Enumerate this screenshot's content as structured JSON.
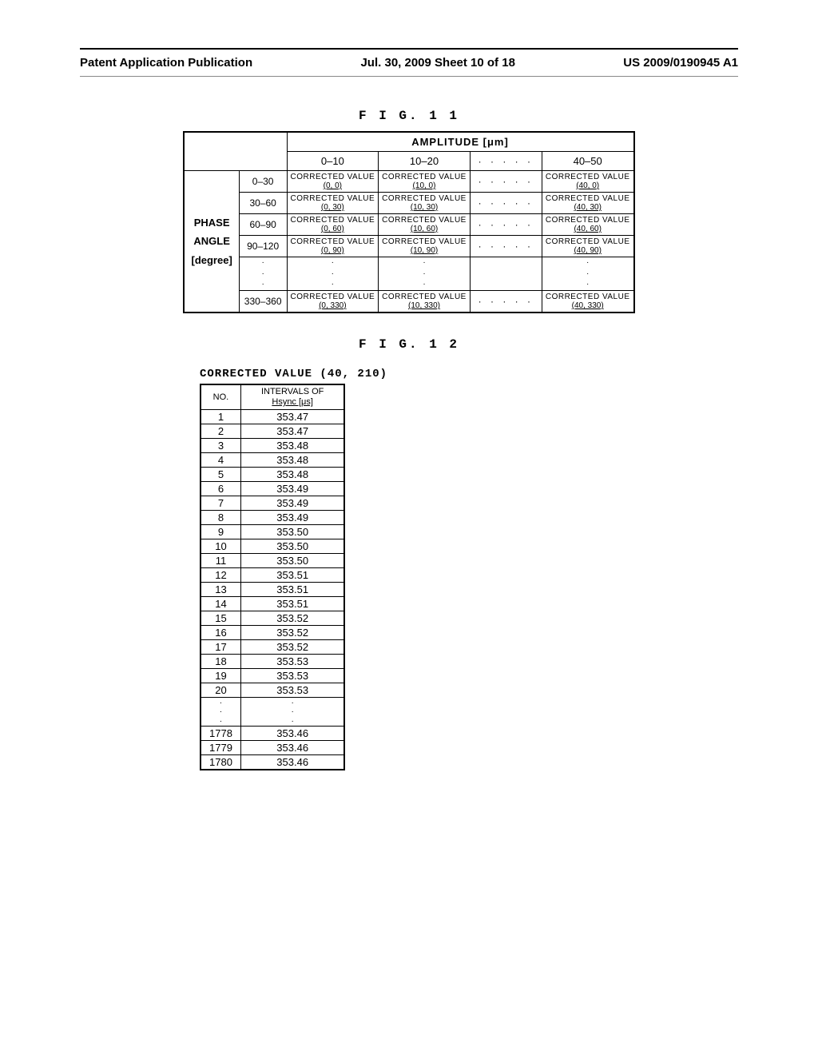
{
  "header": {
    "left": "Patent Application Publication",
    "center": "Jul. 30, 2009  Sheet 10 of 18",
    "right": "US 2009/0190945 A1"
  },
  "fig11": {
    "label": "F I G.  1 1",
    "amplitude_header": "AMPLITUDE   [μm]",
    "col_ranges": [
      "0–10",
      "10–20",
      "· · · · ·",
      "40–50"
    ],
    "phase_label_lines": [
      "PHASE",
      "ANGLE",
      "[degree]"
    ],
    "row_ranges": [
      "0–30",
      "30–60",
      "60–90",
      "90–120"
    ],
    "last_row_range": "330–360",
    "cv_text": "CORRECTED VALUE",
    "cells": {
      "r0": [
        "(0, 0)",
        "(10, 0)",
        "(40, 0)"
      ],
      "r1": [
        "(0, 30)",
        "(10, 30)",
        "(40, 30)"
      ],
      "r2": [
        "(0, 60)",
        "(10, 60)",
        "(40, 60)"
      ],
      "r3": [
        "(0, 90)",
        "(10, 90)",
        "(40, 90)"
      ],
      "rlast": [
        "(0, 330)",
        "(10, 330)",
        "(40, 330)"
      ]
    },
    "hdots": "· · · · ·"
  },
  "fig12": {
    "label": "F I G.  1 2",
    "title": "CORRECTED VALUE (40, 210)",
    "col1": "NO.",
    "col2_line1": "INTERVALS OF",
    "col2_line2": "Hsync  [μs]",
    "rows": [
      {
        "no": "1",
        "v": "353.47"
      },
      {
        "no": "2",
        "v": "353.47"
      },
      {
        "no": "3",
        "v": "353.48"
      },
      {
        "no": "4",
        "v": "353.48"
      },
      {
        "no": "5",
        "v": "353.48"
      },
      {
        "no": "6",
        "v": "353.49"
      },
      {
        "no": "7",
        "v": "353.49"
      },
      {
        "no": "8",
        "v": "353.49"
      },
      {
        "no": "9",
        "v": "353.50"
      },
      {
        "no": "10",
        "v": "353.50"
      },
      {
        "no": "11",
        "v": "353.50"
      },
      {
        "no": "12",
        "v": "353.51"
      },
      {
        "no": "13",
        "v": "353.51"
      },
      {
        "no": "14",
        "v": "353.51"
      },
      {
        "no": "15",
        "v": "353.52"
      },
      {
        "no": "16",
        "v": "353.52"
      },
      {
        "no": "17",
        "v": "353.52"
      },
      {
        "no": "18",
        "v": "353.53"
      },
      {
        "no": "19",
        "v": "353.53"
      },
      {
        "no": "20",
        "v": "353.53"
      }
    ],
    "tail_rows": [
      {
        "no": "1778",
        "v": "353.46"
      },
      {
        "no": "1779",
        "v": "353.46"
      },
      {
        "no": "1780",
        "v": "353.46"
      }
    ]
  }
}
